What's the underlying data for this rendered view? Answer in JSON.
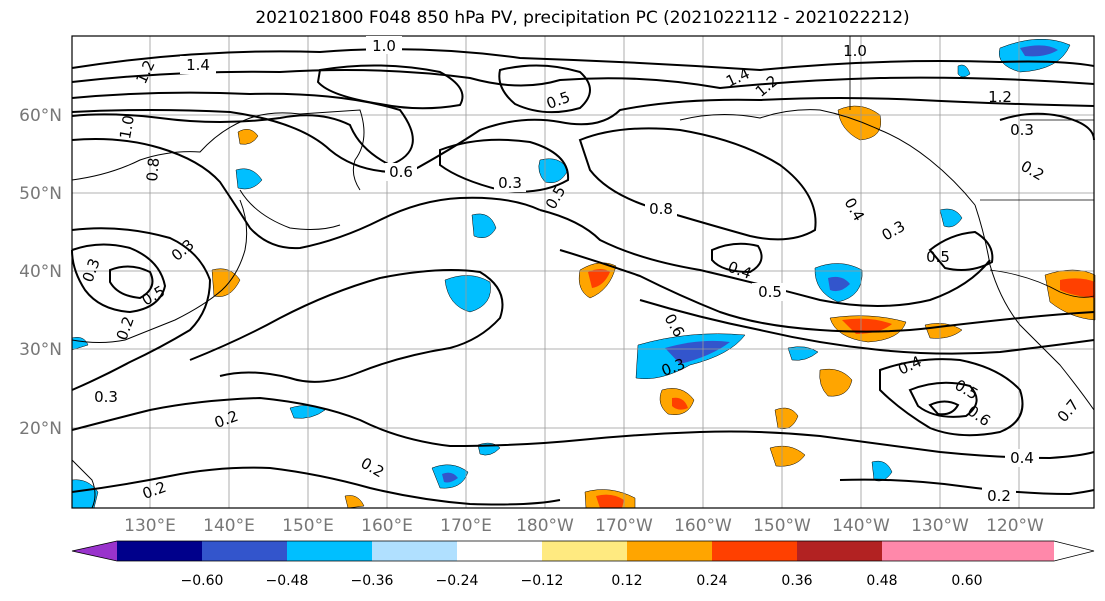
{
  "title": "2021021800 F048 850 hPa PV, precipitation PC (2021022112 - 2021022212)",
  "lat_labels": [
    "60°N",
    "50°N",
    "40°N",
    "30°N",
    "20°N"
  ],
  "lon_labels": [
    "130°E",
    "140°E",
    "150°E",
    "160°E",
    "170°E",
    "180°W",
    "170°W",
    "160°W",
    "150°W",
    "140°W",
    "130°W",
    "120°W"
  ],
  "contour_labels": [
    "1.4",
    "1.0",
    "1.2",
    "1.2",
    "1.0",
    "0.5",
    "1.4",
    "1.2",
    "1.0",
    "0.8",
    "0.6",
    "0.3",
    "0.3",
    "0.5",
    "0.8",
    "0.4",
    "0.3",
    "0.2",
    "0.5",
    "0.4",
    "0.5",
    "0.6",
    "0.3",
    "0.4",
    "0.5",
    "0.6",
    "0.3",
    "0.2",
    "0.2",
    "0.2",
    "0.4",
    "0.2",
    "0.7",
    "0.3",
    "0.5",
    "0.3",
    "0.2"
  ],
  "colorbar": {
    "ticks": [
      "−0.60",
      "−0.48",
      "−0.36",
      "−0.24",
      "−0.12",
      "0.12",
      "0.24",
      "0.36",
      "0.48",
      "0.60"
    ],
    "colors": [
      "#9933cc",
      "#00008b",
      "#3355cc",
      "#00bfff",
      "#b0e0ff",
      "#ffffff",
      "#ffea80",
      "#ffa500",
      "#ff4000",
      "#b22222",
      "#ff88aa"
    ]
  }
}
